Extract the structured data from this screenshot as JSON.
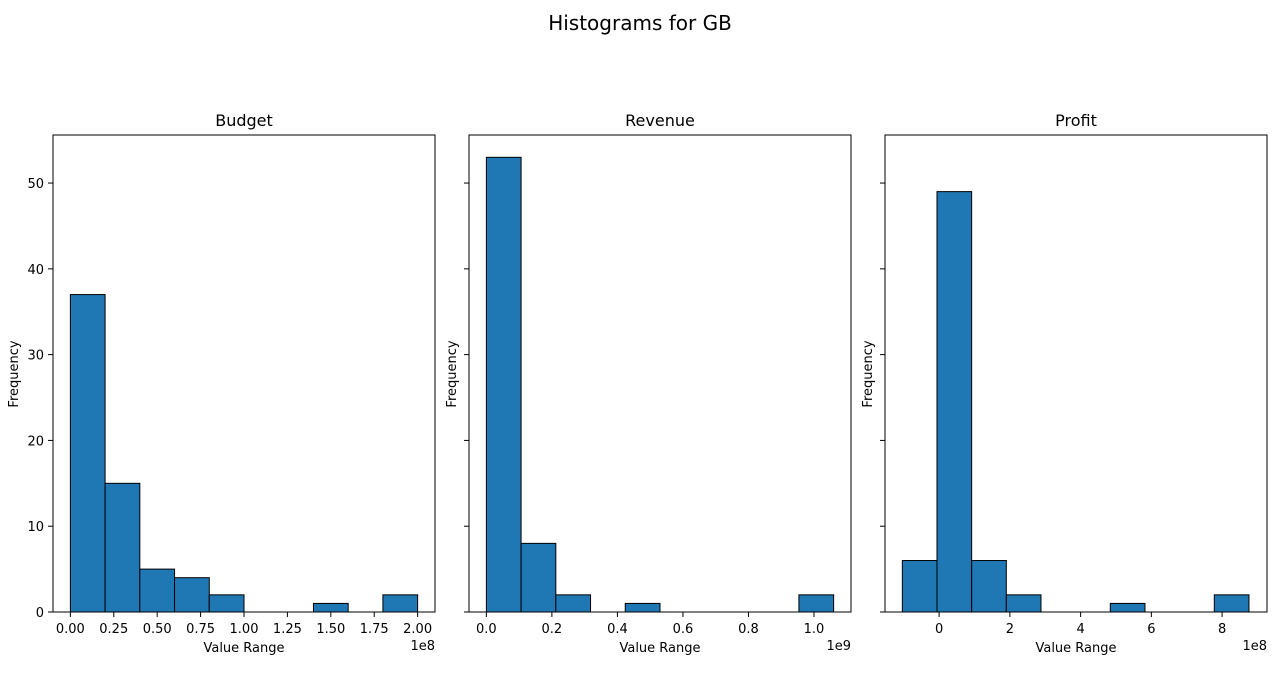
{
  "figure": {
    "title": "Histograms for GB"
  },
  "colors": {
    "bar": "#1f77b4",
    "edge": "#000000"
  },
  "chart_data": [
    {
      "type": "bar",
      "title": "Budget",
      "xlabel": "Value Range",
      "ylabel": "Frequency",
      "x_offset_label": "1e8",
      "x_range": [
        -0.1,
        2.1
      ],
      "x_ticks": [
        0,
        0.25,
        0.5,
        0.75,
        1.0,
        1.25,
        1.5,
        1.75,
        2.0
      ],
      "x_tick_labels": [
        "0.00",
        "0.25",
        "0.50",
        "0.75",
        "1.00",
        "1.25",
        "1.50",
        "1.75",
        "2.00"
      ],
      "bin_edges": [
        0,
        0.2,
        0.4,
        0.6,
        0.8,
        1.0,
        1.2,
        1.4,
        1.6,
        1.8,
        2.0
      ],
      "counts": [
        37,
        15,
        5,
        4,
        2,
        0,
        0,
        1,
        0,
        2
      ],
      "y_ticks": [
        0,
        10,
        20,
        30,
        40,
        50
      ],
      "y_tick_labels": [
        "0",
        "10",
        "20",
        "30",
        "40",
        "50"
      ],
      "ylim": [
        0,
        55.6
      ]
    },
    {
      "type": "bar",
      "title": "Revenue",
      "xlabel": "Value Range",
      "ylabel": "Frequency",
      "x_offset_label": "1e9",
      "x_range": [
        -0.053,
        1.113
      ],
      "x_ticks": [
        0,
        0.2,
        0.4,
        0.6,
        0.8,
        1.0
      ],
      "x_tick_labels": [
        "0.0",
        "0.2",
        "0.4",
        "0.6",
        "0.8",
        "1.0"
      ],
      "bin_edges": [
        0,
        0.106,
        0.212,
        0.318,
        0.424,
        0.53,
        0.636,
        0.742,
        0.848,
        0.954,
        1.06
      ],
      "counts": [
        53,
        8,
        2,
        0,
        1,
        0,
        0,
        0,
        0,
        2
      ],
      "y_ticks": [
        0,
        10,
        20,
        30,
        40,
        50
      ],
      "y_tick_labels": [
        "",
        "",
        "",
        "",
        "",
        ""
      ],
      "ylim": [
        0,
        55.6
      ]
    },
    {
      "type": "bar",
      "title": "Profit",
      "xlabel": "Value Range",
      "ylabel": "Frequency",
      "x_offset_label": "1e8",
      "x_range": [
        -1.53,
        9.27
      ],
      "x_ticks": [
        0,
        2,
        4,
        6,
        8
      ],
      "x_tick_labels": [
        "0",
        "2",
        "4",
        "6",
        "8"
      ],
      "bin_edges": [
        -1.04,
        -0.06,
        0.92,
        1.9,
        2.88,
        3.86,
        4.84,
        5.82,
        6.8,
        7.78,
        8.76
      ],
      "counts": [
        6,
        49,
        6,
        2,
        0,
        0,
        1,
        0,
        0,
        2
      ],
      "y_ticks": [
        0,
        10,
        20,
        30,
        40,
        50
      ],
      "y_tick_labels": [
        "",
        "",
        "",
        "",
        "",
        ""
      ],
      "ylim": [
        0,
        55.6
      ]
    }
  ]
}
